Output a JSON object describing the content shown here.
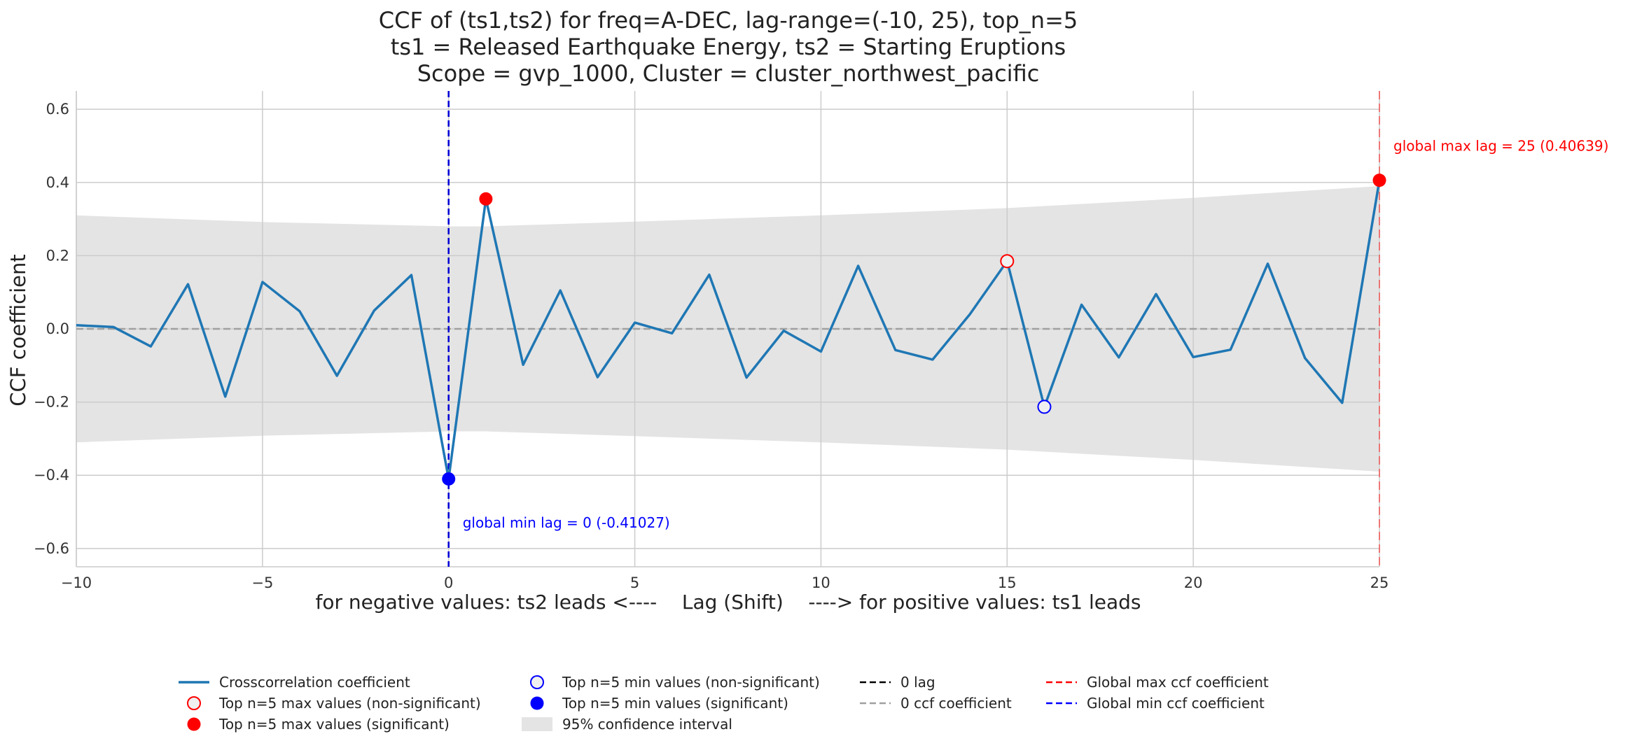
{
  "chart_data": {
    "type": "line",
    "title_lines": [
      "CCF of (ts1,ts2) for freq=A-DEC, lag-range=(-10, 25), top_n=5",
      "ts1 = Released Earthquake Energy, ts2 = Starting Eruptions",
      "Scope = gvp_1000, Cluster = cluster_northwest_pacific"
    ],
    "xlabel": "for negative values: ts2 leads <----    Lag (Shift)    ----> for positive values: ts1 leads",
    "ylabel": "CCF coefficient",
    "xlim": [
      -10,
      25
    ],
    "ylim": [
      -0.65,
      0.65
    ],
    "xticks": [
      -10,
      -5,
      0,
      5,
      10,
      15,
      20,
      25
    ],
    "xtick_labels": [
      "−10",
      "−5",
      "0",
      "5",
      "10",
      "15",
      "20",
      "25"
    ],
    "yticks": [
      -0.6,
      -0.4,
      -0.2,
      0.0,
      0.2,
      0.4,
      0.6
    ],
    "ytick_labels": [
      "−0.6",
      "−0.4",
      "−0.2",
      "0.0",
      "0.2",
      "0.4",
      "0.6"
    ],
    "grid": true,
    "series": [
      {
        "name": "Crosscorrelation coefficient",
        "color": "#1f77b4",
        "x": [
          -10,
          -9,
          -8,
          -7,
          -6,
          -5,
          -4,
          -3,
          -2,
          -1,
          0,
          1,
          2,
          3,
          4,
          5,
          6,
          7,
          8,
          9,
          10,
          11,
          12,
          13,
          14,
          15,
          16,
          17,
          18,
          19,
          20,
          21,
          22,
          23,
          24,
          25
        ],
        "values": [
          0.01,
          0.005,
          -0.048,
          0.122,
          -0.185,
          0.128,
          0.048,
          -0.128,
          0.05,
          0.147,
          -0.41,
          0.355,
          -0.098,
          0.105,
          -0.132,
          0.017,
          -0.012,
          0.148,
          -0.133,
          -0.005,
          -0.062,
          0.172,
          -0.058,
          -0.084,
          0.04,
          0.185,
          -0.213,
          0.066,
          -0.078,
          0.095,
          -0.077,
          -0.057,
          0.178,
          -0.08,
          -0.202,
          0.406
        ]
      }
    ],
    "confidence_interval": {
      "name": "95% confidence interval",
      "color": "#e4e4e4",
      "x": [
        -10,
        -5,
        0,
        1,
        5,
        10,
        15,
        20,
        25
      ],
      "upper": [
        0.31,
        0.292,
        0.28,
        0.28,
        0.293,
        0.31,
        0.33,
        0.358,
        0.39
      ],
      "lower": [
        -0.31,
        -0.292,
        -0.28,
        -0.28,
        -0.293,
        -0.31,
        -0.33,
        -0.358,
        -0.39
      ]
    },
    "markers": {
      "max_non_significant": [
        {
          "x": 15,
          "y": 0.185
        }
      ],
      "max_significant": [
        {
          "x": 1,
          "y": 0.355
        },
        {
          "x": 25,
          "y": 0.406
        }
      ],
      "min_non_significant": [
        {
          "x": 16,
          "y": -0.213
        }
      ],
      "min_significant": [
        {
          "x": 0,
          "y": -0.41
        }
      ]
    },
    "reference_lines": {
      "zero_lag_x": 0,
      "zero_ccf_y": 0,
      "global_max_x": 25,
      "global_min_x": 0
    },
    "annotations": {
      "global_max": "global max lag = 25 (0.40639)",
      "global_min": "global min lag = 0 (-0.41027)"
    },
    "colors": {
      "max": "#ff0000",
      "min": "#0000ff",
      "zero_ccf": "#a0a0a0",
      "zero_lag": "#000000",
      "grid": "#cccccc"
    },
    "legend": {
      "placement": "bottom-center",
      "items": [
        {
          "label": "Crosscorrelation coefficient",
          "kind": "line",
          "color": "#1f77b4"
        },
        {
          "label": "Top n=5 max values (non-significant)",
          "kind": "open-circle",
          "color": "#ff0000"
        },
        {
          "label": "Top n=5 max values (significant)",
          "kind": "filled-circle",
          "color": "#ff0000"
        },
        {
          "label": "Top n=5 min values (non-significant)",
          "kind": "open-circle",
          "color": "#0000ff"
        },
        {
          "label": "Top n=5 min values (significant)",
          "kind": "filled-circle",
          "color": "#0000ff"
        },
        {
          "label": "95% confidence interval",
          "kind": "patch",
          "color": "#e4e4e4"
        },
        {
          "label": "0 lag",
          "kind": "dash",
          "color": "#000000"
        },
        {
          "label": "0 ccf coefficient",
          "kind": "dash",
          "color": "#a0a0a0"
        },
        {
          "label": "Global max ccf coefficient",
          "kind": "dash",
          "color": "#ff0000"
        },
        {
          "label": "Global min ccf coefficient",
          "kind": "dash",
          "color": "#0000ff"
        }
      ]
    }
  }
}
